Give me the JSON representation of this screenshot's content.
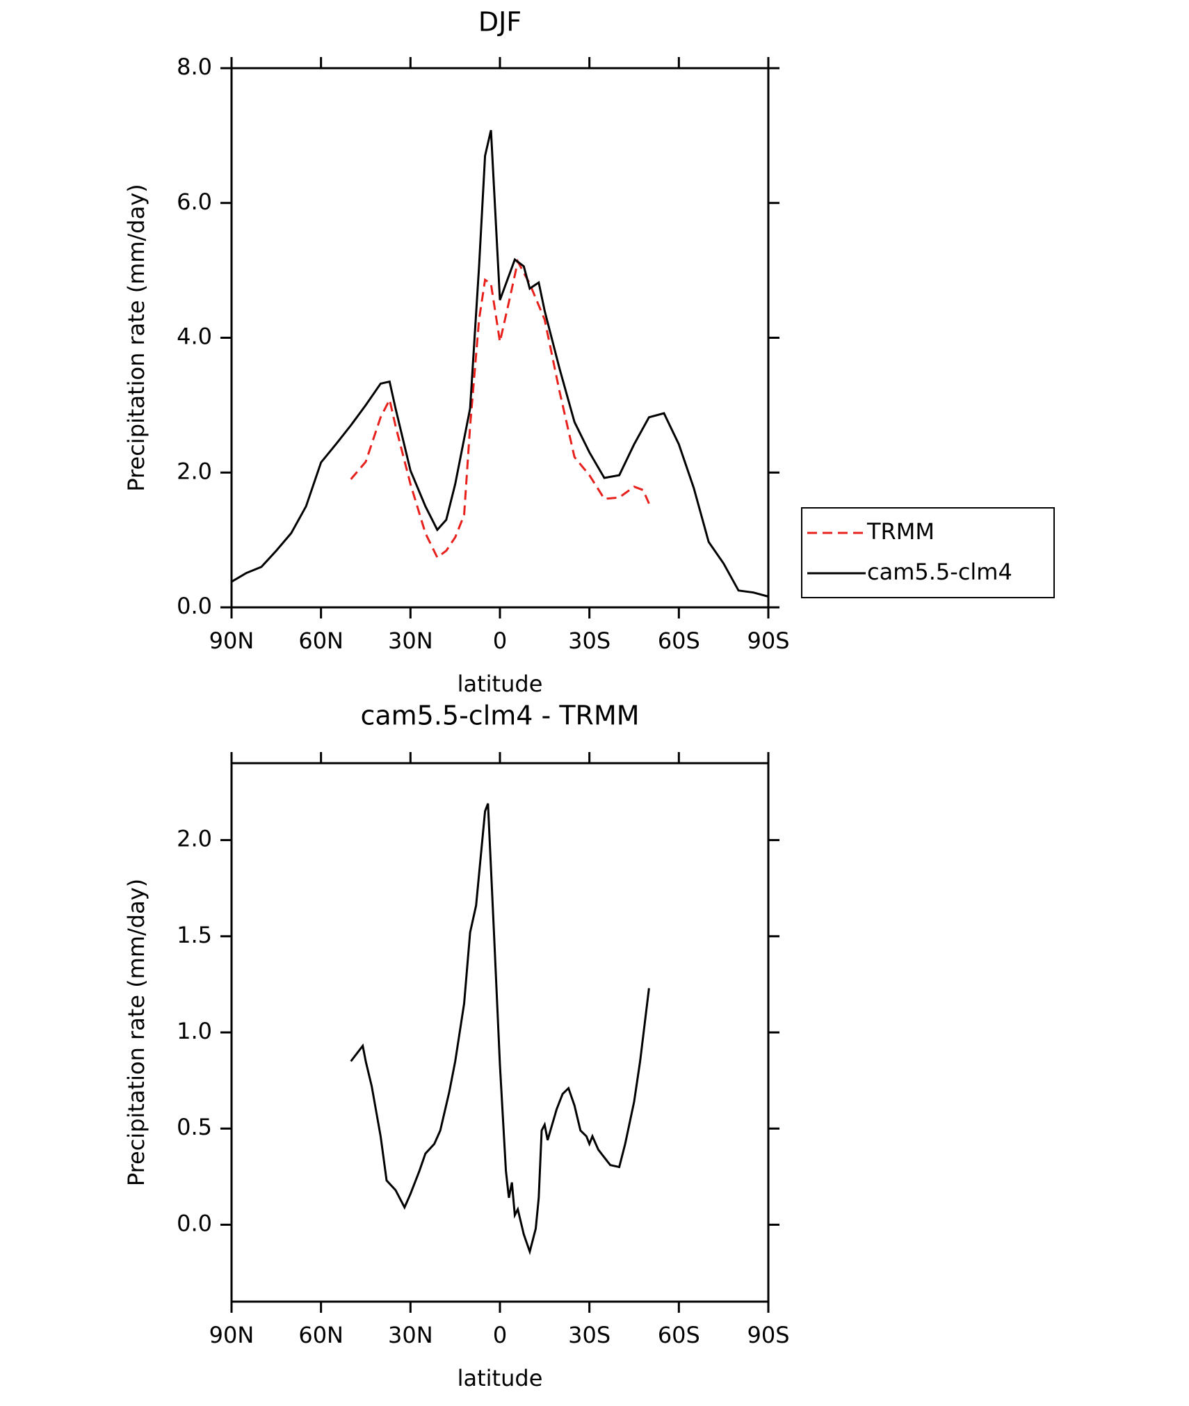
{
  "chart_data": [
    {
      "type": "line",
      "title": "DJF",
      "xlabel": "latitude",
      "ylabel": "Precipitation rate (mm/day)",
      "xlim": [
        90,
        -90
      ],
      "xticks": [
        {
          "value": 90,
          "label": "90N"
        },
        {
          "value": 60,
          "label": "60N"
        },
        {
          "value": 30,
          "label": "30N"
        },
        0,
        {
          "value": -30,
          "label": "30S"
        },
        {
          "value": -60,
          "label": "60S"
        },
        {
          "value": -90,
          "label": "90S"
        }
      ],
      "ylim": [
        0,
        8
      ],
      "yticks": [
        {
          "value": 0,
          "label": "0.0"
        },
        {
          "value": 2,
          "label": "2.0"
        },
        {
          "value": 4,
          "label": "4.0"
        },
        {
          "value": 6,
          "label": "6.0"
        },
        {
          "value": 8,
          "label": "8.0"
        }
      ],
      "legend": "right",
      "series": [
        {
          "name": "TRMM",
          "color": "#e8201c",
          "line_style": "dashed",
          "x": [
            50,
            45,
            40,
            37,
            35,
            30,
            25,
            21,
            18,
            15,
            12,
            10,
            7,
            5,
            3,
            0,
            -3,
            -6,
            -10,
            -15,
            -20,
            -25,
            -30,
            -35,
            -40,
            -45,
            -48,
            -50
          ],
          "values": [
            1.9,
            2.16,
            2.82,
            3.08,
            2.69,
            1.83,
            1.1,
            0.74,
            0.84,
            1.04,
            1.37,
            2.69,
            4.27,
            4.86,
            4.8,
            3.94,
            4.53,
            5.13,
            4.8,
            4.27,
            3.2,
            2.23,
            1.96,
            1.61,
            1.63,
            1.79,
            1.74,
            1.54
          ]
        },
        {
          "name": "cam5.5-clm4",
          "color": "#000000",
          "line_style": "solid",
          "x": [
            90,
            85,
            80,
            75,
            70,
            65,
            60,
            55,
            50,
            45,
            40,
            37,
            35,
            30,
            25,
            21,
            18,
            15,
            10,
            7,
            5,
            3,
            0,
            -2,
            -5,
            -8,
            -10,
            -13,
            -15,
            -20,
            -25,
            -30,
            -35,
            -40,
            -45,
            -50,
            -55,
            -60,
            -65,
            -70,
            -75,
            -80,
            -85,
            -90
          ],
          "values": [
            0.38,
            0.51,
            0.6,
            0.84,
            1.1,
            1.5,
            2.15,
            2.42,
            2.7,
            3.0,
            3.32,
            3.35,
            2.95,
            2.03,
            1.5,
            1.15,
            1.3,
            1.83,
            2.95,
            5.06,
            6.7,
            7.08,
            4.56,
            4.8,
            5.16,
            5.06,
            4.73,
            4.82,
            4.4,
            3.54,
            2.75,
            2.3,
            1.92,
            1.96,
            2.42,
            2.82,
            2.88,
            2.42,
            1.77,
            0.97,
            0.65,
            0.25,
            0.22,
            0.16
          ]
        }
      ]
    },
    {
      "type": "line",
      "title": "cam5.5-clm4 - TRMM",
      "xlabel": "latitude",
      "ylabel": "Precipitation rate (mm/day)",
      "xlim": [
        90,
        -90
      ],
      "xticks": [
        {
          "value": 90,
          "label": "90N"
        },
        {
          "value": 60,
          "label": "60N"
        },
        {
          "value": 30,
          "label": "30N"
        },
        0,
        {
          "value": -30,
          "label": "30S"
        },
        {
          "value": -60,
          "label": "60S"
        },
        {
          "value": -90,
          "label": "90S"
        }
      ],
      "ylim": [
        -0.4,
        2.4
      ],
      "yticks": [
        {
          "value": 0,
          "label": "0.0"
        },
        0.5,
        {
          "value": 1,
          "label": "1.0"
        },
        1.5,
        {
          "value": 2,
          "label": "2.0"
        }
      ],
      "series": [
        {
          "color": "#000000",
          "line_style": "solid",
          "x": [
            50,
            46,
            45,
            43,
            40,
            38,
            35,
            32,
            30,
            27,
            25,
            22,
            20,
            17,
            15,
            12,
            10,
            8,
            5,
            4,
            2,
            0,
            -2,
            -3,
            -4,
            -5,
            -6,
            -8,
            -10,
            -12,
            -13,
            -14,
            -15,
            -16,
            -19,
            -21,
            -23,
            -25,
            -27,
            -29,
            -30,
            -31,
            -33,
            -35,
            -37,
            -40,
            -42,
            -45,
            -47,
            -50
          ],
          "values": [
            0.85,
            0.93,
            0.85,
            0.72,
            0.46,
            0.23,
            0.18,
            0.09,
            0.16,
            0.28,
            0.37,
            0.42,
            0.49,
            0.69,
            0.85,
            1.15,
            1.52,
            1.66,
            2.15,
            2.19,
            1.52,
            0.83,
            0.28,
            0.14,
            0.22,
            0.05,
            0.08,
            -0.05,
            -0.14,
            -0.02,
            0.14,
            0.49,
            0.52,
            0.44,
            0.6,
            0.68,
            0.71,
            0.62,
            0.49,
            0.46,
            0.42,
            0.46,
            0.39,
            0.35,
            0.31,
            0.3,
            0.42,
            0.64,
            0.85,
            1.23
          ]
        }
      ]
    }
  ]
}
